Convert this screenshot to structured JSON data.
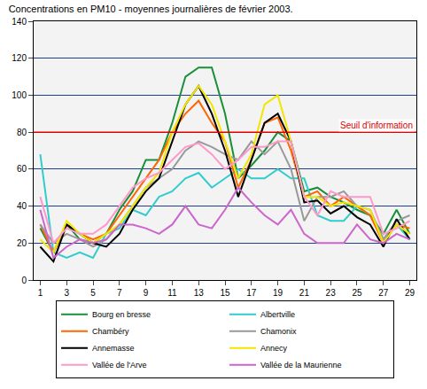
{
  "chart_data": {
    "type": "line",
    "title": "Concentrations en PM10 - moyennes journalières de février 2003.",
    "x": [
      1,
      2,
      3,
      4,
      5,
      6,
      7,
      8,
      9,
      10,
      11,
      12,
      13,
      14,
      15,
      16,
      17,
      18,
      19,
      20,
      21,
      22,
      23,
      24,
      25,
      26,
      27,
      28,
      29
    ],
    "xlim": [
      0.5,
      29.5
    ],
    "xticks": [
      1,
      3,
      5,
      7,
      9,
      11,
      13,
      15,
      17,
      19,
      21,
      23,
      25,
      27,
      29
    ],
    "ylim": [
      0,
      140
    ],
    "yticks": [
      0,
      20,
      40,
      60,
      80,
      100,
      120,
      140
    ],
    "grid": true,
    "legend": "bottom",
    "annotations": [
      {
        "text": "Seuil d'information",
        "y": 80,
        "color": "#e00000"
      }
    ],
    "series": [
      {
        "name": "Bourg en bresse",
        "color": "#1a8f3a",
        "values": [
          28,
          15,
          30,
          22,
          20,
          25,
          38,
          48,
          65,
          65,
          85,
          110,
          115,
          115,
          90,
          55,
          62,
          70,
          80,
          75,
          48,
          50,
          45,
          42,
          38,
          35,
          25,
          38,
          25
        ]
      },
      {
        "name": "Albertville",
        "color": "#33cccc",
        "values": [
          68,
          15,
          12,
          15,
          12,
          25,
          28,
          38,
          35,
          45,
          48,
          55,
          58,
          50,
          55,
          60,
          55,
          55,
          60,
          55,
          55,
          35,
          32,
          32,
          40,
          35,
          22,
          30,
          22
        ]
      },
      {
        "name": "Chambéry",
        "color": "#ff6600",
        "values": [
          30,
          15,
          30,
          25,
          22,
          25,
          35,
          45,
          55,
          65,
          80,
          90,
          97,
          85,
          75,
          50,
          65,
          85,
          88,
          70,
          45,
          48,
          40,
          45,
          40,
          35,
          20,
          30,
          28
        ]
      },
      {
        "name": "Chamonix",
        "color": "#999999",
        "values": [
          30,
          20,
          25,
          22,
          18,
          22,
          30,
          40,
          50,
          55,
          60,
          70,
          75,
          72,
          68,
          65,
          75,
          68,
          75,
          60,
          32,
          45,
          45,
          48,
          40,
          38,
          22,
          32,
          35
        ]
      },
      {
        "name": "Annemasse",
        "color": "#000000",
        "values": [
          18,
          10,
          30,
          25,
          20,
          18,
          25,
          38,
          48,
          55,
          75,
          95,
          105,
          90,
          70,
          45,
          65,
          85,
          90,
          75,
          42,
          43,
          36,
          40,
          34,
          30,
          18,
          33,
          22
        ]
      },
      {
        "name": "Annecy",
        "color": "#f2e600",
        "values": [
          22,
          15,
          32,
          25,
          20,
          25,
          30,
          40,
          50,
          58,
          80,
          95,
          105,
          95,
          75,
          55,
          68,
          95,
          100,
          75,
          45,
          45,
          40,
          42,
          40,
          38,
          20,
          30,
          25
        ]
      },
      {
        "name": "Vallée de l'Arve",
        "color": "#ff99cc",
        "values": [
          45,
          20,
          28,
          25,
          25,
          30,
          40,
          50,
          55,
          58,
          65,
          72,
          74,
          68,
          60,
          65,
          72,
          72,
          75,
          75,
          45,
          35,
          48,
          45,
          45,
          45,
          25,
          28,
          32
        ]
      },
      {
        "name": "Vallée de la Maurienne",
        "color": "#cc66cc",
        "values": [
          38,
          12,
          18,
          22,
          20,
          22,
          30,
          30,
          28,
          25,
          30,
          40,
          30,
          28,
          38,
          50,
          42,
          35,
          30,
          38,
          25,
          20,
          20,
          20,
          30,
          22,
          20,
          25,
          22
        ]
      }
    ]
  }
}
